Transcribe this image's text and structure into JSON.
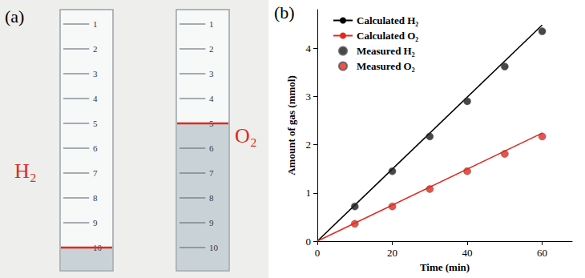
{
  "photo": {
    "panel": "(a)",
    "cylinders": [
      {
        "label": "H₂",
        "color": "#e02a1f",
        "graduations": [
          1,
          2,
          3,
          4,
          5,
          6,
          7,
          8,
          9,
          10
        ],
        "gas_level": 10
      },
      {
        "label": "O₂",
        "color": "#e02a1f",
        "graduations": [
          1,
          2,
          3,
          4,
          5,
          6,
          7,
          8,
          9,
          10
        ],
        "gas_level": 5
      }
    ]
  },
  "chart_data": {
    "type": "line",
    "panel": "(b)",
    "xlabel": "Time (min)",
    "ylabel": "Amount of gas (mmol)",
    "xlim": [
      0,
      68
    ],
    "xticks": [
      0,
      20,
      40,
      60
    ],
    "ylim": [
      0,
      4.8
    ],
    "yticks": [
      0,
      1,
      2,
      3,
      4
    ],
    "grid": false,
    "legend": "upper left",
    "series": [
      {
        "name": "Calculated H₂",
        "type": "line",
        "color": "#000000",
        "line_style": "solid",
        "x": [
          0,
          60
        ],
        "values": [
          0,
          4.48
        ]
      },
      {
        "name": "Calculated O₂",
        "type": "line",
        "color": "#e02a1f",
        "line_style": "solid",
        "x": [
          0,
          60
        ],
        "values": [
          0,
          2.24
        ]
      },
      {
        "name": "Measured H₂",
        "type": "scatter",
        "color": "#1a1a1a",
        "marker": "circle",
        "x": [
          10,
          20,
          30,
          40,
          50,
          60
        ],
        "values": [
          0.72,
          1.45,
          2.17,
          2.9,
          3.62,
          4.35
        ]
      },
      {
        "name": "Measured O₂",
        "type": "scatter",
        "color": "#e02a1f",
        "marker": "circle",
        "x": [
          10,
          20,
          30,
          40,
          50,
          60
        ],
        "values": [
          0.36,
          0.72,
          1.08,
          1.45,
          1.81,
          2.17
        ]
      }
    ]
  }
}
